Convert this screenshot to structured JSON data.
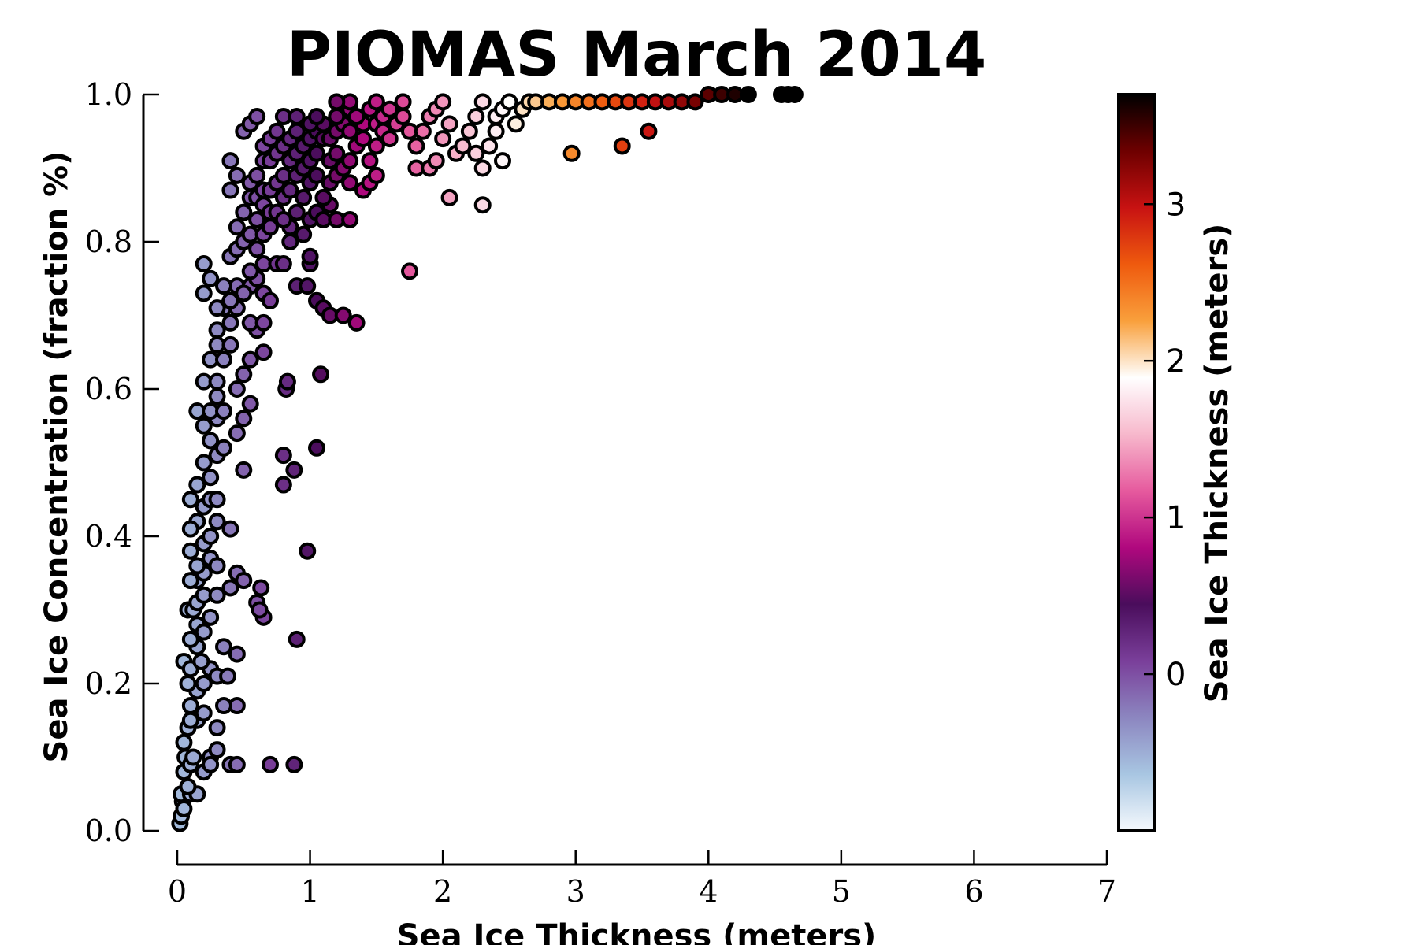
{
  "chart_data": {
    "type": "scatter",
    "title": "PIOMAS March 2014",
    "xlabel": "Sea Ice Thickness (meters)",
    "ylabel": "Sea Ice Concentration (fraction %)",
    "xlim": [
      0,
      7
    ],
    "ylim": [
      0,
      1
    ],
    "x_ticks": [
      "0",
      "1",
      "2",
      "3",
      "4",
      "5",
      "6",
      "7"
    ],
    "y_ticks": [
      "0.0",
      "0.2",
      "0.4",
      "0.6",
      "0.8",
      "1.0"
    ],
    "grid": false,
    "colorbar": {
      "label": "Sea Ice Thickness (meters)",
      "range": [
        -1,
        3.7
      ],
      "ticks": [
        "0",
        "1",
        "2",
        "3"
      ],
      "colors": [
        "#f5f9fd",
        "#a8c6e2",
        "#8c86c0",
        "#7a3f9a",
        "#4a0d5c",
        "#b0087e",
        "#e65a9e",
        "#f7b8cc",
        "#ffffff",
        "#f9a03c",
        "#ef5a0e",
        "#c81212",
        "#6e0000",
        "#000000"
      ]
    },
    "series": [
      {
        "points": [
          [
            0.02,
            0.01
          ],
          [
            0.03,
            0.02
          ],
          [
            0.04,
            0.04
          ],
          [
            0.05,
            0.03
          ],
          [
            0.03,
            0.05
          ],
          [
            0.05,
            0.08
          ],
          [
            0.1,
            0.05
          ],
          [
            0.15,
            0.05
          ],
          [
            0.08,
            0.06
          ],
          [
            0.06,
            0.1
          ],
          [
            0.1,
            0.09
          ],
          [
            0.05,
            0.12
          ],
          [
            0.12,
            0.1
          ],
          [
            0.08,
            0.14
          ],
          [
            0.15,
            0.15
          ],
          [
            0.1,
            0.15
          ],
          [
            0.2,
            0.16
          ],
          [
            0.2,
            0.08
          ],
          [
            0.25,
            0.1
          ],
          [
            0.25,
            0.09
          ],
          [
            0.1,
            0.17
          ],
          [
            0.15,
            0.19
          ],
          [
            0.08,
            0.2
          ],
          [
            0.2,
            0.2
          ],
          [
            0.25,
            0.22
          ],
          [
            0.3,
            0.21
          ],
          [
            0.38,
            0.21
          ],
          [
            0.05,
            0.23
          ],
          [
            0.1,
            0.22
          ],
          [
            0.18,
            0.23
          ],
          [
            0.15,
            0.25
          ],
          [
            0.1,
            0.26
          ],
          [
            0.15,
            0.28
          ],
          [
            0.2,
            0.27
          ],
          [
            0.25,
            0.29
          ],
          [
            0.08,
            0.3
          ],
          [
            0.12,
            0.3
          ],
          [
            0.15,
            0.31
          ],
          [
            0.2,
            0.32
          ],
          [
            0.15,
            0.34
          ],
          [
            0.1,
            0.34
          ],
          [
            0.2,
            0.35
          ],
          [
            0.25,
            0.37
          ],
          [
            0.15,
            0.36
          ],
          [
            0.3,
            0.36
          ],
          [
            0.1,
            0.38
          ],
          [
            0.2,
            0.39
          ],
          [
            0.25,
            0.4
          ],
          [
            0.15,
            0.42
          ],
          [
            0.3,
            0.42
          ],
          [
            0.1,
            0.41
          ],
          [
            0.2,
            0.44
          ],
          [
            0.25,
            0.45
          ],
          [
            0.3,
            0.45
          ],
          [
            0.15,
            0.47
          ],
          [
            0.25,
            0.48
          ],
          [
            0.1,
            0.45
          ],
          [
            0.2,
            0.5
          ],
          [
            0.3,
            0.51
          ],
          [
            0.35,
            0.52
          ],
          [
            0.25,
            0.53
          ],
          [
            0.2,
            0.55
          ],
          [
            0.3,
            0.56
          ],
          [
            0.15,
            0.57
          ],
          [
            0.25,
            0.57
          ],
          [
            0.35,
            0.57
          ],
          [
            0.3,
            0.59
          ],
          [
            0.2,
            0.61
          ],
          [
            0.3,
            0.61
          ],
          [
            0.25,
            0.64
          ],
          [
            0.35,
            0.64
          ],
          [
            0.3,
            0.66
          ],
          [
            0.4,
            0.66
          ],
          [
            0.3,
            0.68
          ],
          [
            0.4,
            0.69
          ],
          [
            0.35,
            0.71
          ],
          [
            0.45,
            0.71
          ],
          [
            0.3,
            0.71
          ],
          [
            0.4,
            0.72
          ],
          [
            0.45,
            0.74
          ],
          [
            0.35,
            0.74
          ],
          [
            0.2,
            0.73
          ],
          [
            0.25,
            0.75
          ],
          [
            0.2,
            0.77
          ],
          [
            0.4,
            0.78
          ],
          [
            0.45,
            0.79
          ],
          [
            0.5,
            0.8
          ],
          [
            0.55,
            0.81
          ],
          [
            0.45,
            0.82
          ],
          [
            0.5,
            0.84
          ],
          [
            0.55,
            0.86
          ],
          [
            0.6,
            0.86
          ],
          [
            0.65,
            0.85
          ],
          [
            0.55,
            0.88
          ],
          [
            0.45,
            0.89
          ],
          [
            0.4,
            0.91
          ],
          [
            0.4,
            0.87
          ],
          [
            0.6,
            0.89
          ],
          [
            0.65,
            0.87
          ],
          [
            0.5,
            0.95
          ],
          [
            0.55,
            0.96
          ],
          [
            0.6,
            0.97
          ],
          [
            0.3,
            0.11
          ],
          [
            0.4,
            0.09
          ],
          [
            0.45,
            0.09
          ],
          [
            0.45,
            0.17
          ],
          [
            0.35,
            0.17
          ],
          [
            0.3,
            0.14
          ],
          [
            0.45,
            0.24
          ],
          [
            0.35,
            0.25
          ],
          [
            0.4,
            0.33
          ],
          [
            0.3,
            0.32
          ],
          [
            0.45,
            0.35
          ],
          [
            0.5,
            0.34
          ],
          [
            0.6,
            0.31
          ],
          [
            0.65,
            0.29
          ],
          [
            0.63,
            0.33
          ],
          [
            0.62,
            0.3
          ],
          [
            0.5,
            0.49
          ],
          [
            0.45,
            0.54
          ],
          [
            0.5,
            0.56
          ],
          [
            0.55,
            0.58
          ],
          [
            0.45,
            0.6
          ],
          [
            0.5,
            0.62
          ],
          [
            0.55,
            0.64
          ],
          [
            0.65,
            0.65
          ],
          [
            0.6,
            0.68
          ],
          [
            0.55,
            0.69
          ],
          [
            0.65,
            0.69
          ],
          [
            0.55,
            0.74
          ],
          [
            0.5,
            0.73
          ],
          [
            0.6,
            0.75
          ],
          [
            0.65,
            0.73
          ],
          [
            0.55,
            0.76
          ],
          [
            0.65,
            0.77
          ],
          [
            0.7,
            0.72
          ],
          [
            0.6,
            0.79
          ],
          [
            0.65,
            0.81
          ],
          [
            0.7,
            0.82
          ],
          [
            0.6,
            0.83
          ],
          [
            0.7,
            0.84
          ],
          [
            0.75,
            0.84
          ],
          [
            0.7,
            0.87
          ],
          [
            0.75,
            0.88
          ],
          [
            0.65,
            0.91
          ],
          [
            0.7,
            0.91
          ],
          [
            0.75,
            0.92
          ],
          [
            0.65,
            0.93
          ],
          [
            0.7,
            0.94
          ],
          [
            0.75,
            0.95
          ],
          [
            0.7,
            0.09
          ],
          [
            0.88,
            0.09
          ],
          [
            0.4,
            0.41
          ],
          [
            0.75,
            0.77
          ],
          [
            0.8,
            0.77
          ],
          [
            0.85,
            0.8
          ],
          [
            0.85,
            0.82
          ],
          [
            0.8,
            0.83
          ],
          [
            0.9,
            0.84
          ],
          [
            0.8,
            0.86
          ],
          [
            0.85,
            0.87
          ],
          [
            0.8,
            0.89
          ],
          [
            0.9,
            0.89
          ],
          [
            0.85,
            0.91
          ],
          [
            0.9,
            0.92
          ],
          [
            0.8,
            0.93
          ],
          [
            0.85,
            0.94
          ],
          [
            0.9,
            0.95
          ],
          [
            0.8,
            0.97
          ],
          [
            0.9,
            0.97
          ],
          [
            0.8,
            0.51
          ],
          [
            0.8,
            0.47
          ],
          [
            0.82,
            0.6
          ],
          [
            0.83,
            0.61
          ],
          [
            0.88,
            0.49
          ],
          [
            0.9,
            0.26
          ],
          [
            0.98,
            0.38
          ],
          [
            0.9,
            0.74
          ],
          [
            0.98,
            0.74
          ],
          [
            1.05,
            0.52
          ],
          [
            1.08,
            0.62
          ],
          [
            1.0,
            0.77
          ],
          [
            1.0,
            0.78
          ],
          [
            0.95,
            0.81
          ],
          [
            1.0,
            0.83
          ],
          [
            1.05,
            0.84
          ],
          [
            0.95,
            0.86
          ],
          [
            1.0,
            0.88
          ],
          [
            1.05,
            0.89
          ],
          [
            0.95,
            0.9
          ],
          [
            1.0,
            0.91
          ],
          [
            1.05,
            0.92
          ],
          [
            0.95,
            0.93
          ],
          [
            1.0,
            0.94
          ],
          [
            1.05,
            0.95
          ],
          [
            1.1,
            0.96
          ],
          [
            1.0,
            0.96
          ],
          [
            1.1,
            0.94
          ],
          [
            1.05,
            0.97
          ],
          [
            1.05,
            0.72
          ],
          [
            1.1,
            0.71
          ],
          [
            1.15,
            0.7
          ],
          [
            1.1,
            0.83
          ],
          [
            1.15,
            0.85
          ],
          [
            1.1,
            0.86
          ],
          [
            1.15,
            0.88
          ],
          [
            1.2,
            0.89
          ],
          [
            1.15,
            0.91
          ],
          [
            1.2,
            0.92
          ],
          [
            1.15,
            0.94
          ],
          [
            1.2,
            0.95
          ],
          [
            1.25,
            0.96
          ],
          [
            1.2,
            0.97
          ],
          [
            1.3,
            0.98
          ],
          [
            1.2,
            0.83
          ],
          [
            1.25,
            0.7
          ],
          [
            1.35,
            0.69
          ],
          [
            1.3,
            0.83
          ],
          [
            1.3,
            0.88
          ],
          [
            1.25,
            0.9
          ],
          [
            1.3,
            0.91
          ],
          [
            1.35,
            0.93
          ],
          [
            1.3,
            0.95
          ],
          [
            1.4,
            0.96
          ],
          [
            1.35,
            0.97
          ],
          [
            1.3,
            0.99
          ],
          [
            1.2,
            0.99
          ],
          [
            1.4,
            0.87
          ],
          [
            1.45,
            0.88
          ],
          [
            1.5,
            0.89
          ],
          [
            1.45,
            0.91
          ],
          [
            1.5,
            0.93
          ],
          [
            1.4,
            0.94
          ],
          [
            1.5,
            0.96
          ],
          [
            1.55,
            0.97
          ],
          [
            1.45,
            0.98
          ],
          [
            1.5,
            0.99
          ],
          [
            1.6,
            0.98
          ],
          [
            1.55,
            0.95
          ],
          [
            1.6,
            0.94
          ],
          [
            1.65,
            0.96
          ],
          [
            1.7,
            0.97
          ],
          [
            1.75,
            0.95
          ],
          [
            1.8,
            0.93
          ],
          [
            1.7,
            0.99
          ],
          [
            1.75,
            0.76
          ],
          [
            1.8,
            0.9
          ],
          [
            1.9,
            0.9
          ],
          [
            1.95,
            0.91
          ],
          [
            1.85,
            0.95
          ],
          [
            1.9,
            0.97
          ],
          [
            1.95,
            0.98
          ],
          [
            2.0,
            0.99
          ],
          [
            2.05,
            0.96
          ],
          [
            2.0,
            0.94
          ],
          [
            2.05,
            0.86
          ],
          [
            2.1,
            0.92
          ],
          [
            2.15,
            0.93
          ],
          [
            2.2,
            0.95
          ],
          [
            2.25,
            0.97
          ],
          [
            2.3,
            0.99
          ],
          [
            2.25,
            0.92
          ],
          [
            2.3,
            0.85
          ],
          [
            2.3,
            0.9
          ],
          [
            2.35,
            0.93
          ],
          [
            2.4,
            0.95
          ],
          [
            2.4,
            0.97
          ],
          [
            2.45,
            0.91
          ],
          [
            2.45,
            0.98
          ],
          [
            2.5,
            0.99
          ],
          [
            2.55,
            0.96
          ],
          [
            2.6,
            0.98
          ],
          [
            2.65,
            0.99
          ],
          [
            2.7,
            0.99
          ],
          [
            2.8,
            0.99
          ],
          [
            2.9,
            0.99
          ],
          [
            2.97,
            0.92
          ],
          [
            3.0,
            0.99
          ],
          [
            3.1,
            0.99
          ],
          [
            3.2,
            0.99
          ],
          [
            3.3,
            0.99
          ],
          [
            3.35,
            0.93
          ],
          [
            3.4,
            0.99
          ],
          [
            3.5,
            0.99
          ],
          [
            3.55,
            0.95
          ],
          [
            3.6,
            0.99
          ],
          [
            3.7,
            0.99
          ],
          [
            3.8,
            0.99
          ],
          [
            3.9,
            0.99
          ],
          [
            4.0,
            1.0
          ],
          [
            4.1,
            1.0
          ],
          [
            4.2,
            1.0
          ],
          [
            4.3,
            1.0
          ],
          [
            4.55,
            1.0
          ],
          [
            4.6,
            1.0
          ],
          [
            4.65,
            1.0
          ]
        ]
      }
    ]
  }
}
